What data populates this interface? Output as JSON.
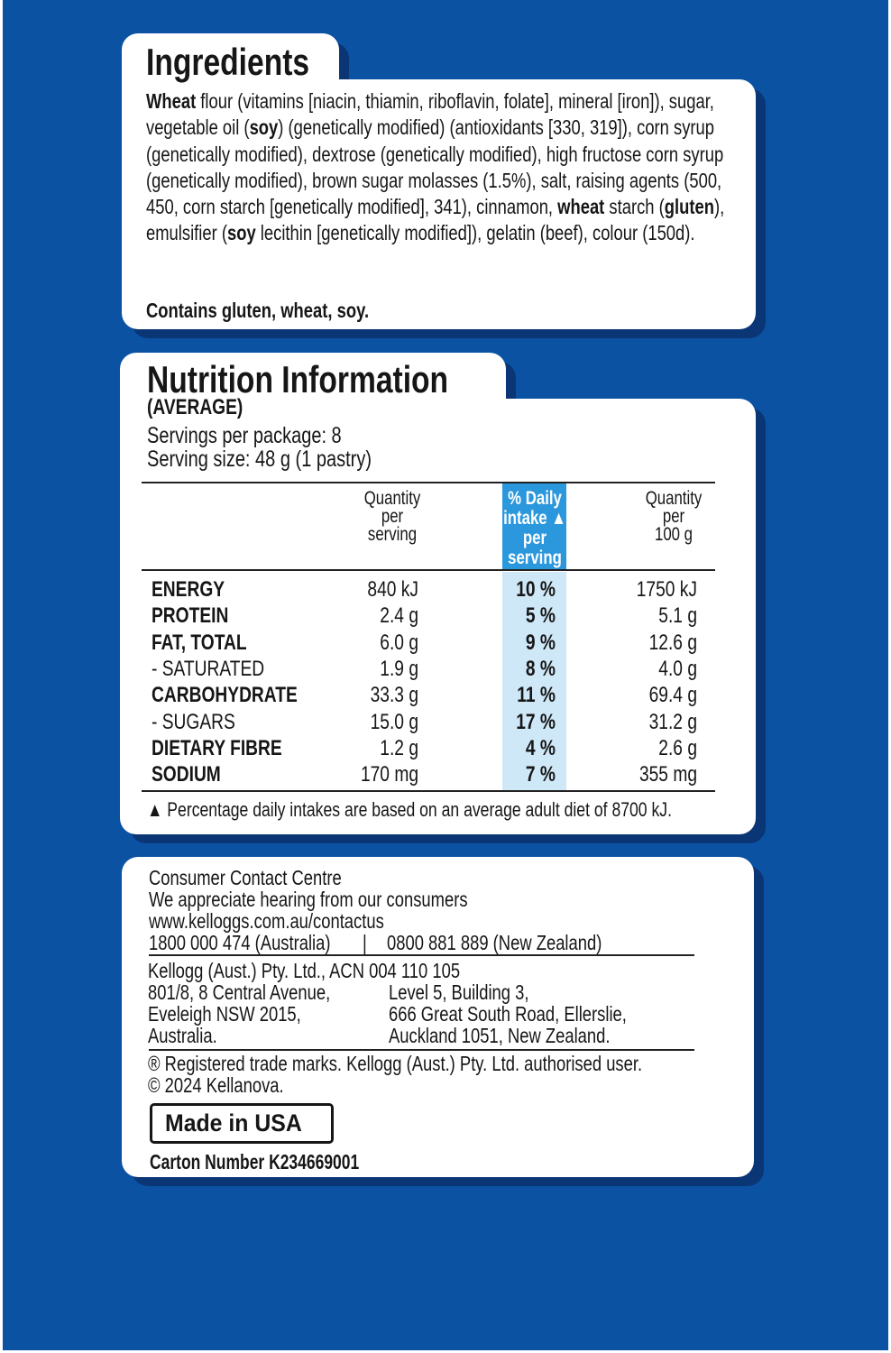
{
  "ingredients": {
    "title": "Ingredients",
    "segments": [
      {
        "text": "Wheat",
        "bold": true
      },
      {
        "text": " flour (vitamins [niacin, thiamin, riboflavin, folate], mineral [iron]), sugar, vegetable oil (",
        "bold": false
      },
      {
        "text": "soy",
        "bold": true
      },
      {
        "text": ") (genetically modified) (antioxidants [330, 319]), corn syrup (genetically modified), dextrose (genetically modified), high fructose corn syrup (genetically modified), brown sugar molasses (1.5%), salt, raising agents (500, 450, corn starch [genetically modified], 341), cinnamon, ",
        "bold": false
      },
      {
        "text": "wheat",
        "bold": true
      },
      {
        "text": " starch (",
        "bold": false
      },
      {
        "text": "gluten",
        "bold": true
      },
      {
        "text": "), emulsifier (",
        "bold": false
      },
      {
        "text": "soy",
        "bold": true
      },
      {
        "text": " lecithin [genetically modified]), gelatin (beef), colour (150d).",
        "bold": false
      }
    ],
    "contains": "Contains gluten, wheat, soy."
  },
  "nutrition": {
    "title": "Nutrition Information",
    "subtitle": "(AVERAGE)",
    "servings": "Servings per package: 8",
    "serving_size": "Serving size: 48 g (1 pastry)",
    "headers": {
      "per_serving": [
        "Quantity",
        "per",
        "serving"
      ],
      "daily": [
        "% Daily",
        "intake ▲",
        "per",
        "serving"
      ],
      "per_100g": [
        "Quantity",
        "per",
        "100 g"
      ]
    },
    "rows": [
      {
        "label": "ENERGY",
        "bold": true,
        "serving": "840 kJ",
        "daily": "10 %",
        "per100": "1750 kJ"
      },
      {
        "label": "PROTEIN",
        "bold": true,
        "serving": "2.4 g",
        "daily": "5 %",
        "per100": "5.1 g"
      },
      {
        "label": "FAT, TOTAL",
        "bold": true,
        "serving": "6.0 g",
        "daily": "9 %",
        "per100": "12.6 g"
      },
      {
        "label": "- SATURATED",
        "bold": false,
        "serving": "1.9 g",
        "daily": "8 %",
        "per100": "4.0 g"
      },
      {
        "label": "CARBOHYDRATE",
        "bold": true,
        "serving": "33.3 g",
        "daily": "11 %",
        "per100": "69.4 g"
      },
      {
        "label": "- SUGARS",
        "bold": false,
        "serving": "15.0 g",
        "daily": "17 %",
        "per100": "31.2 g"
      },
      {
        "label": "DIETARY FIBRE",
        "bold": true,
        "serving": "1.2 g",
        "daily": "4 %",
        "per100": "2.6 g"
      },
      {
        "label": "SODIUM",
        "bold": true,
        "serving": "170 mg",
        "daily": "7 %",
        "per100": "355 mg"
      }
    ],
    "footnote": "▲ Percentage daily intakes are based on an average adult diet of 8700 kJ."
  },
  "contact": {
    "lines": [
      "Consumer Contact Centre",
      "We appreciate hearing from our consumers",
      "www.kelloggs.com.au/contactus"
    ],
    "phone_au": "1800 000 474 (Australia)",
    "sep": "|",
    "phone_nz": "0800 881 889 (New Zealand)",
    "company": "Kellogg (Aust.) Pty. Ltd., ACN 004 110 105",
    "addr_au": [
      "801/8, 8 Central Avenue,",
      "Eveleigh NSW 2015,",
      "Australia."
    ],
    "addr_nz": [
      "Level 5, Building 3,",
      "666 Great South Road, Ellerslie,",
      "Auckland 1051, New Zealand."
    ],
    "trademark": "® Registered trade marks. Kellogg (Aust.) Pty. Ltd. authorised user.",
    "copyright": "© 2024 Kellanova.",
    "made_in": "Made in USA",
    "carton": "Carton Number K234669001"
  }
}
